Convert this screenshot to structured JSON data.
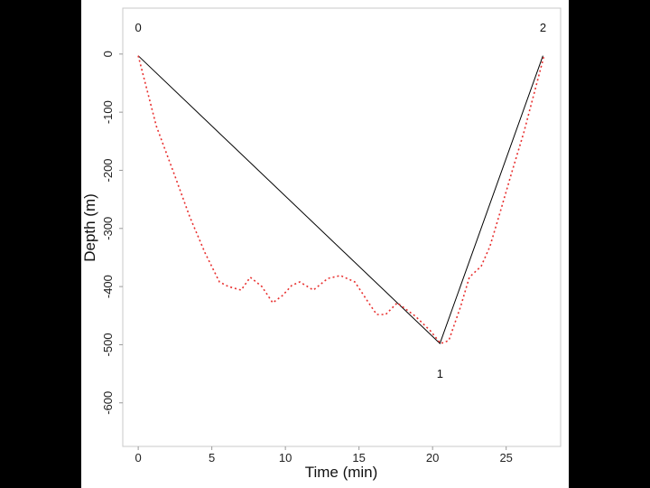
{
  "chart_data": {
    "type": "line",
    "xlabel": "Time (min)",
    "ylabel": "Depth (m)",
    "xlim": [
      -1.05,
      28.7
    ],
    "ylim": [
      -675,
      79
    ],
    "xticks": [
      0,
      5,
      10,
      15,
      20,
      25
    ],
    "yticks": [
      0,
      -100,
      -200,
      -300,
      -400,
      -500,
      -600
    ],
    "grid": false,
    "series": [
      {
        "style": "solid",
        "color": "#000000",
        "x": [
          0,
          20.5,
          27.5
        ],
        "y": [
          -3,
          -498,
          -3
        ],
        "point_labels": [
          "0",
          "1",
          "2"
        ]
      },
      {
        "style": "dotted",
        "color": "#e8302f",
        "x": [
          0,
          1.23,
          2.45,
          3.5,
          4.54,
          5.52,
          6.13,
          6.99,
          7.61,
          8.4,
          9.14,
          9.82,
          10.43,
          10.98,
          11.9,
          12.88,
          13.74,
          14.72,
          15.58,
          16.2,
          16.81,
          17.6,
          18.83,
          19.88,
          20.55,
          21.1,
          21.9,
          22.5,
          23.3,
          23.9,
          24.5,
          25.4,
          26.2,
          27.0,
          27.55
        ],
        "y": [
          -3,
          -124,
          -207,
          -280,
          -342,
          -392,
          -400,
          -406,
          -384,
          -400,
          -428,
          -415,
          -398,
          -392,
          -406,
          -386,
          -381,
          -392,
          -425,
          -448,
          -448,
          -428,
          -451,
          -477,
          -498,
          -493,
          -435,
          -384,
          -365,
          -331,
          -280,
          -202,
          -135,
          -58,
          -5
        ]
      }
    ]
  }
}
